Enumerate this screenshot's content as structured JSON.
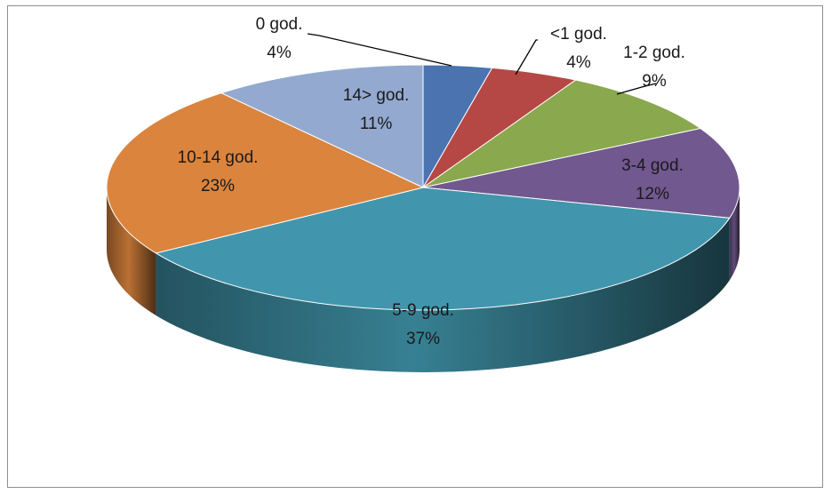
{
  "chart_data": {
    "type": "pie",
    "title": "",
    "style": "3d",
    "slices": [
      {
        "name": "0 god.",
        "label": "0 god.",
        "pct_label": "4%",
        "value": 3.5,
        "color": "#4a73b0"
      },
      {
        "name": "<1 god.",
        "label": "<1 god.",
        "pct_label": "4%",
        "value": 4.5,
        "color": "#b54844"
      },
      {
        "name": "1-2 god.",
        "label": "1-2 god.",
        "pct_label": "9%",
        "value": 9,
        "color": "#8aa84d"
      },
      {
        "name": "3-4 god.",
        "label": "3-4 god.",
        "pct_label": "12%",
        "value": 12,
        "color": "#71588f"
      },
      {
        "name": "5-9 god.",
        "label": "5-9 god.",
        "pct_label": "37%",
        "value": 37,
        "color": "#4196ad"
      },
      {
        "name": "10-14 god.",
        "label": "10-14 god.",
        "pct_label": "23%",
        "value": 23,
        "color": "#db843d"
      },
      {
        "name": "14> god.",
        "label": "14> god.",
        "pct_label": "11%",
        "value": 11,
        "color": "#93a9cf"
      }
    ],
    "legend": "none"
  }
}
